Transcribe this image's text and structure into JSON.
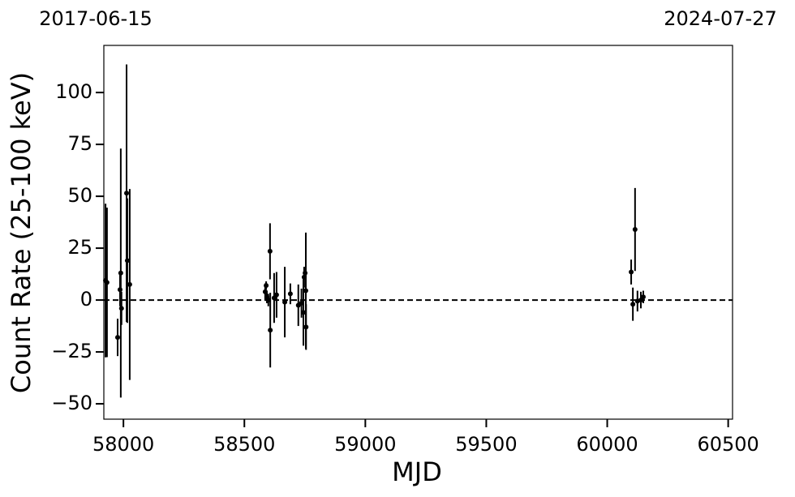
{
  "chart_data": {
    "type": "errorbar",
    "top_left_label": "2017-06-15",
    "top_right_label": "2024-07-27",
    "x_label": "MJD",
    "y_label": "Count Rate (25-100 keV)",
    "xlim": [
      57919,
      60518
    ],
    "ylim": [
      -57.4,
      122.7
    ],
    "xticks": [
      58000,
      58500,
      59000,
      59500,
      60000,
      60500
    ],
    "yticks": [
      {
        "value": -50,
        "label": "−50"
      },
      {
        "value": -25,
        "label": "−25"
      },
      0,
      25,
      50,
      75,
      100
    ],
    "reference_line": 0,
    "color": "#000000",
    "x": [
      57926,
      57932,
      57976,
      57986,
      57989,
      57992,
      58013,
      58016,
      58026,
      58586,
      58590,
      58593,
      58599,
      58606,
      58607,
      58623,
      58633,
      58667,
      58690,
      58723,
      58736,
      58744,
      58747,
      58751,
      58754,
      58755,
      60099,
      60106,
      60115,
      60125,
      60139,
      60149
    ],
    "values": [
      9.4,
      8.5,
      -18,
      5,
      13,
      -4,
      51.5,
      19,
      7.5,
      4,
      7,
      1.5,
      0,
      23.5,
      -14.5,
      1,
      2.5,
      -1,
      3,
      -2.5,
      -1.5,
      -6,
      11,
      13,
      4.5,
      -13,
      13.5,
      -2,
      34,
      -0.5,
      0,
      1.5
    ],
    "errors": [
      37,
      36,
      9,
      8,
      60,
      8,
      62,
      30,
      46,
      4,
      2,
      3,
      3,
      13.5,
      18,
      12,
      11,
      17,
      5,
      10,
      7,
      16,
      5,
      3,
      28,
      11,
      6,
      8,
      20,
      5,
      4,
      3
    ]
  }
}
